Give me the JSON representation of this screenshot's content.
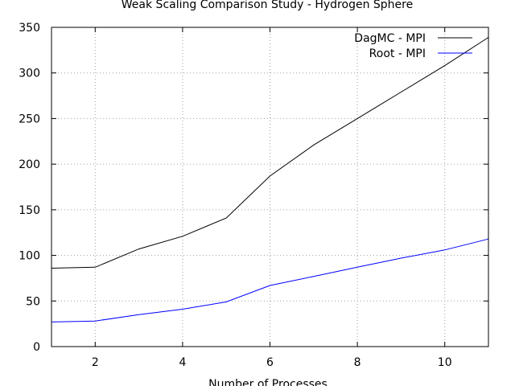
{
  "chart_data": {
    "type": "line",
    "title": "Weak Scaling Comparison Study - Hydrogen Sphere",
    "xlabel": "Number of Processes",
    "ylabel": "",
    "xlim": [
      1,
      11
    ],
    "ylim": [
      0,
      350
    ],
    "xticks": [
      2,
      4,
      6,
      8,
      10
    ],
    "yticks": [
      0,
      50,
      100,
      150,
      200,
      250,
      300,
      350
    ],
    "grid": true,
    "legend_position": "top-right",
    "x": [
      1,
      2,
      3,
      4,
      5,
      6,
      7,
      8,
      9,
      10,
      11
    ],
    "series": [
      {
        "name": "DagMC - MPI",
        "color": "#000000",
        "values": [
          86,
          87,
          107,
          121,
          141,
          187,
          221,
          250,
          279,
          308,
          339
        ]
      },
      {
        "name": "Root - MPI",
        "color": "#0000ff",
        "values": [
          27,
          28,
          35,
          41,
          49,
          67,
          77,
          87,
          97,
          106,
          118
        ]
      }
    ]
  }
}
